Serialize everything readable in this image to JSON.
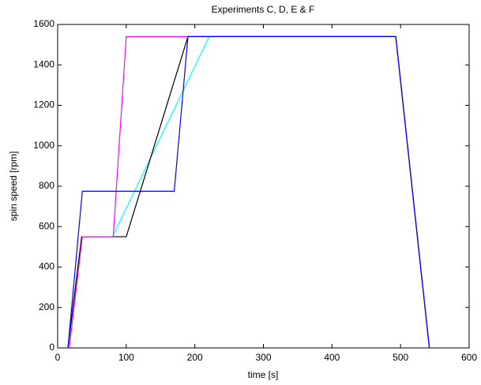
{
  "chart_data": {
    "type": "line",
    "title": "Experiments C, D, E & F",
    "x_label": "time [s]",
    "y_label": "spin speed [rpm]",
    "xlim": [
      0,
      600
    ],
    "xticks": [
      0,
      100,
      200,
      300,
      400,
      500,
      600
    ],
    "ylim": [
      0,
      1600
    ],
    "yticks": [
      0,
      200,
      400,
      600,
      800,
      1000,
      1200,
      1400,
      1600
    ],
    "grid": false,
    "series": [
      {
        "color": "#00ffff",
        "x": [
          15,
          35,
          80,
          221,
          493,
          542
        ],
        "values": [
          0,
          550,
          550,
          1540,
          1540,
          0
        ]
      },
      {
        "color": "#000000",
        "x": [
          15,
          35,
          100,
          190,
          493,
          542
        ],
        "values": [
          0,
          550,
          550,
          1540,
          1540,
          0
        ]
      },
      {
        "color": "#ff00ff",
        "x": [
          17,
          36,
          81,
          100,
          493,
          542
        ],
        "values": [
          0,
          550,
          550,
          1540,
          1540,
          0
        ]
      },
      {
        "color": "#0000ff",
        "x": [
          15,
          36,
          170,
          190,
          493,
          542
        ],
        "values": [
          0,
          775,
          775,
          1540,
          1540,
          0
        ]
      }
    ]
  }
}
